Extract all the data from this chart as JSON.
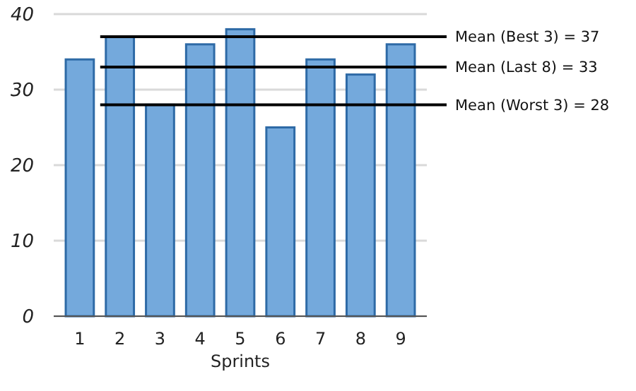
{
  "chart_data": {
    "type": "bar",
    "xlabel": "Sprints",
    "categories": [
      "1",
      "2",
      "3",
      "4",
      "5",
      "6",
      "7",
      "8",
      "9"
    ],
    "values": [
      34,
      37,
      28,
      36,
      38,
      25,
      34,
      32,
      36
    ],
    "color": "#74a9dc",
    "ylim": [
      0,
      40
    ],
    "yticks": [
      0,
      10,
      20,
      30,
      40
    ],
    "grid": "y",
    "ref_lines": [
      {
        "axis": "y",
        "value": 37,
        "label": "Mean (Best 3) = 37",
        "color": "#000000"
      },
      {
        "axis": "y",
        "value": 33,
        "label": "Mean (Last 8) = 33",
        "color": "#000000"
      },
      {
        "axis": "y",
        "value": 28,
        "label": "Mean (Worst 3) = 28",
        "color": "#000000"
      }
    ]
  }
}
